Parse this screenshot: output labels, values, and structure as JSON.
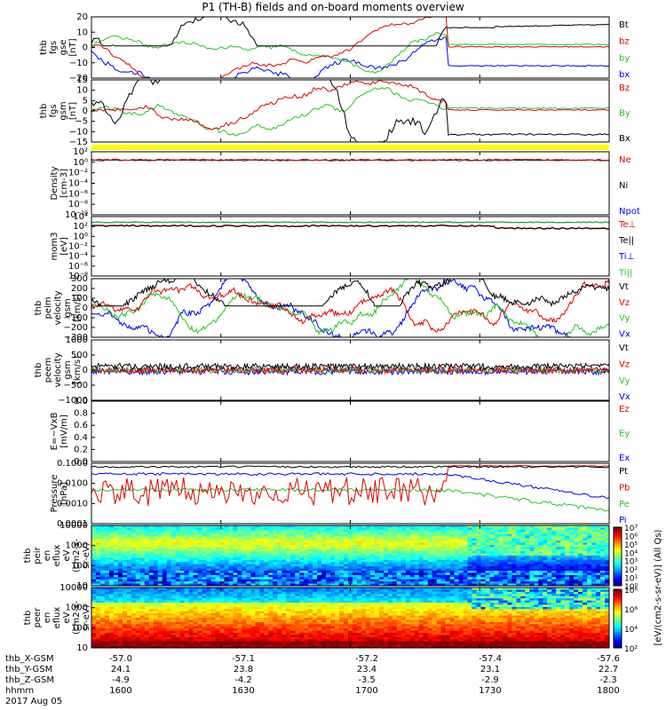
{
  "title": "P1 (TH-B) fields and on-board moments overview",
  "date": "2017 Aug 05",
  "footer_labels": [
    "thb_X-GSM",
    "thb_Y-GSM",
    "thb_Z-GSM",
    "hhmm"
  ],
  "footer_columns": [
    [
      "-57.0",
      "24.1",
      "-4.9",
      "1600"
    ],
    [
      "-57.1",
      "23.8",
      "-4.2",
      "1630"
    ],
    [
      "-57.2",
      "23.4",
      "-3.5",
      "1700"
    ],
    [
      "-57.4",
      "23.1",
      "-2.9",
      "1730"
    ],
    [
      "-57.6",
      "22.7",
      "-2.3",
      "1800"
    ]
  ],
  "colors": {
    "black": "#000000",
    "red": "#e00000",
    "green": "#22c822",
    "blue": "#0000ee",
    "yellow": "#ffff00"
  },
  "chart_data": {
    "type": "line",
    "x_range_hhmm": [
      "1600",
      "1800"
    ],
    "panels": [
      {
        "id": "fgs_gse",
        "ylabel": [
          "thb",
          "fgs",
          "gse",
          "[nT]"
        ],
        "ylim": [
          -20,
          20
        ],
        "yticks": [
          "20",
          "10",
          "0",
          "−10",
          "−20"
        ],
        "legend": [
          {
            "name": "Bt",
            "color": "black"
          },
          {
            "name": "bz",
            "color": "red"
          },
          {
            "name": "by",
            "color": "green"
          },
          {
            "name": "bx",
            "color": "blue"
          }
        ]
      },
      {
        "id": "fgs_gsm",
        "ylabel": [
          "thb",
          "fgs",
          "gsm",
          "[nT]"
        ],
        "ylim": [
          -17,
          16
        ],
        "yticks": [
          "15",
          "10",
          "5",
          "0",
          "−5",
          "−10",
          "−15"
        ],
        "legend": [
          {
            "name": "Bz",
            "color": "red"
          },
          {
            "name": "By",
            "color": "green"
          },
          {
            "name": "Bx",
            "color": "black"
          }
        ]
      },
      {
        "id": "density",
        "ylabel": [
          "Density",
          "[cm-3]"
        ],
        "yscale": "log",
        "yticks": [
          "10²",
          "10⁰",
          "10⁻²",
          "10⁻⁴",
          "10⁻⁶",
          "10⁻⁸",
          "10⁻¹⁰"
        ],
        "legend": [
          {
            "name": "Ne",
            "color": "red"
          },
          {
            "name": "Ni",
            "color": "black"
          },
          {
            "name": "Npot",
            "color": "blue"
          }
        ]
      },
      {
        "id": "temperature",
        "ylabel": [
          "mom3",
          "[eV]"
        ],
        "yscale": "log",
        "yticks": [
          "10⁴",
          "10²",
          "10⁰",
          "10⁻²",
          "10⁻⁴",
          "10⁻⁶",
          "10⁻⁸"
        ],
        "legend": [
          {
            "name": "Te⊥",
            "color": "red"
          },
          {
            "name": "Te||",
            "color": "black"
          },
          {
            "name": "Ti⊥",
            "color": "blue"
          },
          {
            "name": "Ti||",
            "color": "green"
          }
        ]
      },
      {
        "id": "peim_velocity",
        "ylabel": [
          "thb",
          "peim",
          "velocity",
          "gsm",
          "[km/s]"
        ],
        "ylim": [
          -300,
          300
        ],
        "yticks": [
          "300",
          "200",
          "100",
          "0",
          "−100",
          "−200",
          "−300"
        ],
        "legend": [
          {
            "name": "Vt",
            "color": "black"
          },
          {
            "name": "Vz",
            "color": "red"
          },
          {
            "name": "Vy",
            "color": "green"
          },
          {
            "name": "Vx",
            "color": "blue"
          }
        ]
      },
      {
        "id": "peem_velocity",
        "ylabel": [
          "thb",
          "peem",
          "velocity",
          "gsm",
          "[km/s]"
        ],
        "ylim": [
          -1000,
          1000
        ],
        "yticks": [
          "1000",
          "500",
          "0",
          "−500",
          "−1000"
        ],
        "legend": [
          {
            "name": "Vt",
            "color": "black"
          },
          {
            "name": "Vz",
            "color": "red"
          },
          {
            "name": "Vy",
            "color": "green"
          },
          {
            "name": "Vx",
            "color": "blue"
          }
        ]
      },
      {
        "id": "efield",
        "ylabel": [
          "E=−VxB",
          "[mV/m]"
        ],
        "ylim": [
          0,
          1
        ],
        "yticks": [
          "1.0",
          "0.8",
          "0.6",
          "0.4",
          "0.2",
          "0.0"
        ],
        "legend": [
          {
            "name": "Ez",
            "color": "red"
          },
          {
            "name": "Ey",
            "color": "green"
          },
          {
            "name": "Ex",
            "color": "blue"
          }
        ]
      },
      {
        "id": "pressure",
        "ylabel": [
          "Pressure",
          "[nPa]"
        ],
        "yscale": "log",
        "yticks": [
          "0.1000",
          "0.0100",
          "0.0010",
          "0.0001"
        ],
        "legend": [
          {
            "name": "Pt",
            "color": "black"
          },
          {
            "name": "Pb",
            "color": "red"
          },
          {
            "name": "Pe",
            "color": "green"
          },
          {
            "name": "Pi",
            "color": "blue"
          }
        ]
      },
      {
        "id": "peir_spec",
        "type": "heatmap",
        "ylabel": [
          "thb",
          "peir",
          "en",
          "eflux",
          "eV",
          "(cm2-s-",
          "sr-eV)"
        ],
        "yticks": [
          "10000",
          "1000",
          "100",
          "10"
        ]
      },
      {
        "id": "peer_spec",
        "type": "heatmap",
        "ylabel": [
          "thb",
          "peer",
          "en",
          "eflux",
          "eV",
          "(cm2-s-",
          "sr-eV)"
        ],
        "yticks": [
          "10000",
          "1000",
          "100",
          "10"
        ]
      }
    ],
    "colorbar_1": {
      "ticks": [
        "10⁷",
        "10⁶",
        "10⁵",
        "10⁴",
        "10³",
        "10²",
        "10¹",
        "10⁰"
      ]
    },
    "colorbar_2": {
      "ticks": [
        "10⁸",
        "10⁶",
        "10⁴",
        "10²"
      ]
    },
    "colorbar_label": "[eV/(cm2-s-sr-eV)] (All Qs)"
  }
}
